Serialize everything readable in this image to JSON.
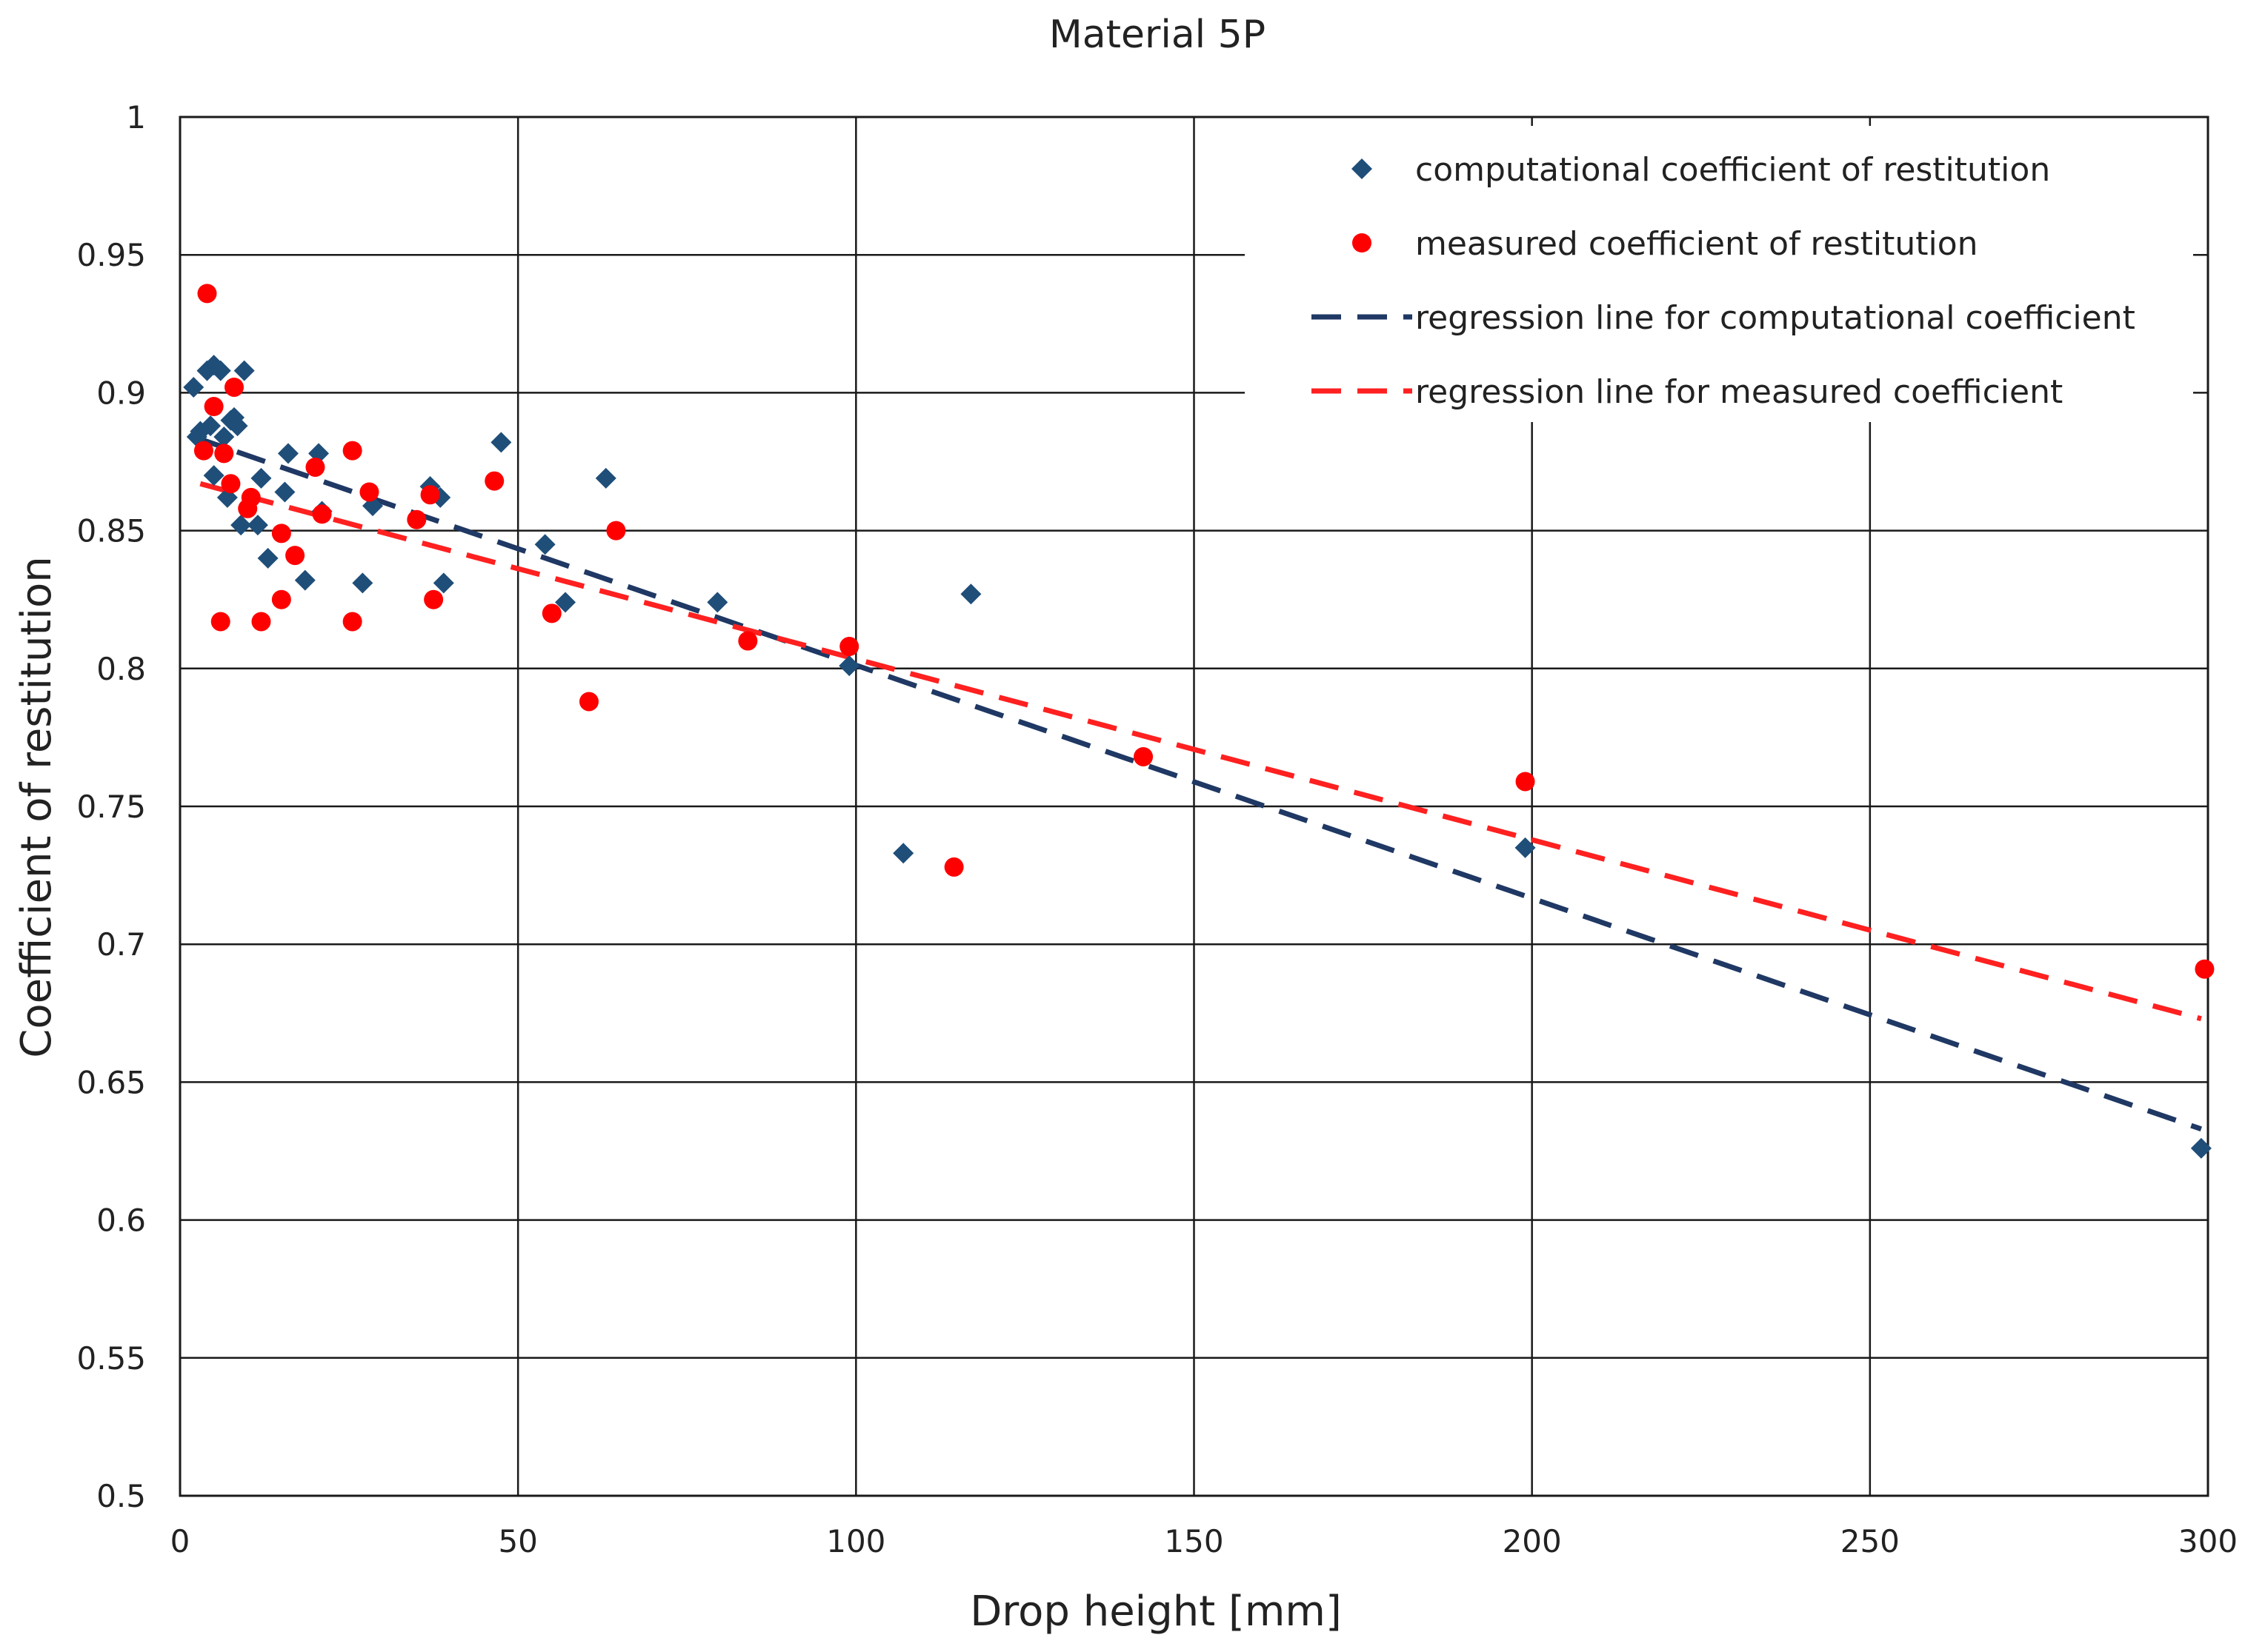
{
  "chart_data": {
    "type": "scatter",
    "title": "Material 5P",
    "xlabel": "Drop height [mm]",
    "ylabel": "Coefficient of restitution",
    "xlim": [
      0,
      300
    ],
    "ylim": [
      0.5,
      1
    ],
    "x_ticks": [
      0,
      50,
      100,
      150,
      200,
      250,
      300
    ],
    "y_ticks": [
      0.5,
      0.55,
      0.6,
      0.65,
      0.7,
      0.75,
      0.8,
      0.85,
      0.9,
      0.95,
      1
    ],
    "x_tick_labels": [
      "0",
      "50",
      "100",
      "150",
      "200",
      "250",
      "300"
    ],
    "y_tick_labels": [
      "0.5",
      "0.55",
      "0.6",
      "0.65",
      "0.7",
      "0.75",
      "0.8",
      "0.85",
      "0.9",
      "0.95",
      "1"
    ],
    "grid": true,
    "legend_position": "top-right",
    "series": [
      {
        "name": "computational coefficient of restitution",
        "kind": "scatter",
        "marker": "diamond",
        "color": "#1f4e79",
        "points": [
          [
            2,
            0.902
          ],
          [
            2.5,
            0.884
          ],
          [
            3,
            0.886
          ],
          [
            4,
            0.908
          ],
          [
            4.5,
            0.888
          ],
          [
            5,
            0.91
          ],
          [
            5,
            0.87
          ],
          [
            6,
            0.908
          ],
          [
            6.5,
            0.884
          ],
          [
            7,
            0.862
          ],
          [
            7.5,
            0.89
          ],
          [
            8,
            0.891
          ],
          [
            8.5,
            0.888
          ],
          [
            9,
            0.852
          ],
          [
            9.5,
            0.908
          ],
          [
            11.5,
            0.852
          ],
          [
            12,
            0.869
          ],
          [
            13,
            0.84
          ],
          [
            15.5,
            0.864
          ],
          [
            16,
            0.878
          ],
          [
            18.5,
            0.832
          ],
          [
            20.5,
            0.878
          ],
          [
            21,
            0.857
          ],
          [
            27,
            0.831
          ],
          [
            28.5,
            0.859
          ],
          [
            37,
            0.866
          ],
          [
            38.5,
            0.862
          ],
          [
            39,
            0.831
          ],
          [
            47.5,
            0.882
          ],
          [
            54,
            0.845
          ],
          [
            57,
            0.824
          ],
          [
            63,
            0.869
          ],
          [
            79.5,
            0.824
          ],
          [
            99,
            0.801
          ],
          [
            107,
            0.733
          ],
          [
            117,
            0.827
          ],
          [
            199,
            0.735
          ],
          [
            299,
            0.626
          ]
        ]
      },
      {
        "name": "measured coefficient of restitution",
        "kind": "scatter",
        "marker": "circle",
        "color": "#ff0000",
        "points": [
          [
            3.5,
            0.879
          ],
          [
            4,
            0.936
          ],
          [
            5,
            0.895
          ],
          [
            6,
            0.817
          ],
          [
            6.5,
            0.878
          ],
          [
            7.5,
            0.867
          ],
          [
            8,
            0.902
          ],
          [
            10,
            0.858
          ],
          [
            10.5,
            0.862
          ],
          [
            12,
            0.817
          ],
          [
            15,
            0.849
          ],
          [
            15,
            0.825
          ],
          [
            17,
            0.841
          ],
          [
            20,
            0.873
          ],
          [
            21,
            0.856
          ],
          [
            25.5,
            0.879
          ],
          [
            25.5,
            0.817
          ],
          [
            28,
            0.864
          ],
          [
            35,
            0.854
          ],
          [
            37,
            0.863
          ],
          [
            37.5,
            0.825
          ],
          [
            46.5,
            0.868
          ],
          [
            55,
            0.82
          ],
          [
            60.5,
            0.788
          ],
          [
            64.5,
            0.85
          ],
          [
            84,
            0.81
          ],
          [
            99,
            0.808
          ],
          [
            114.5,
            0.728
          ],
          [
            142.5,
            0.768
          ],
          [
            199,
            0.759
          ],
          [
            299.5,
            0.691
          ]
        ]
      },
      {
        "name": "regression line for computational coefficient",
        "kind": "line",
        "dash": true,
        "color": "#1f3864",
        "x": [
          2,
          299
        ],
        "y": [
          0.884,
          0.633
        ]
      },
      {
        "name": "regression line for measured coefficient",
        "kind": "line",
        "dash": true,
        "color": "#ff2020",
        "x": [
          3,
          299
        ],
        "y": [
          0.867,
          0.673
        ]
      }
    ]
  }
}
